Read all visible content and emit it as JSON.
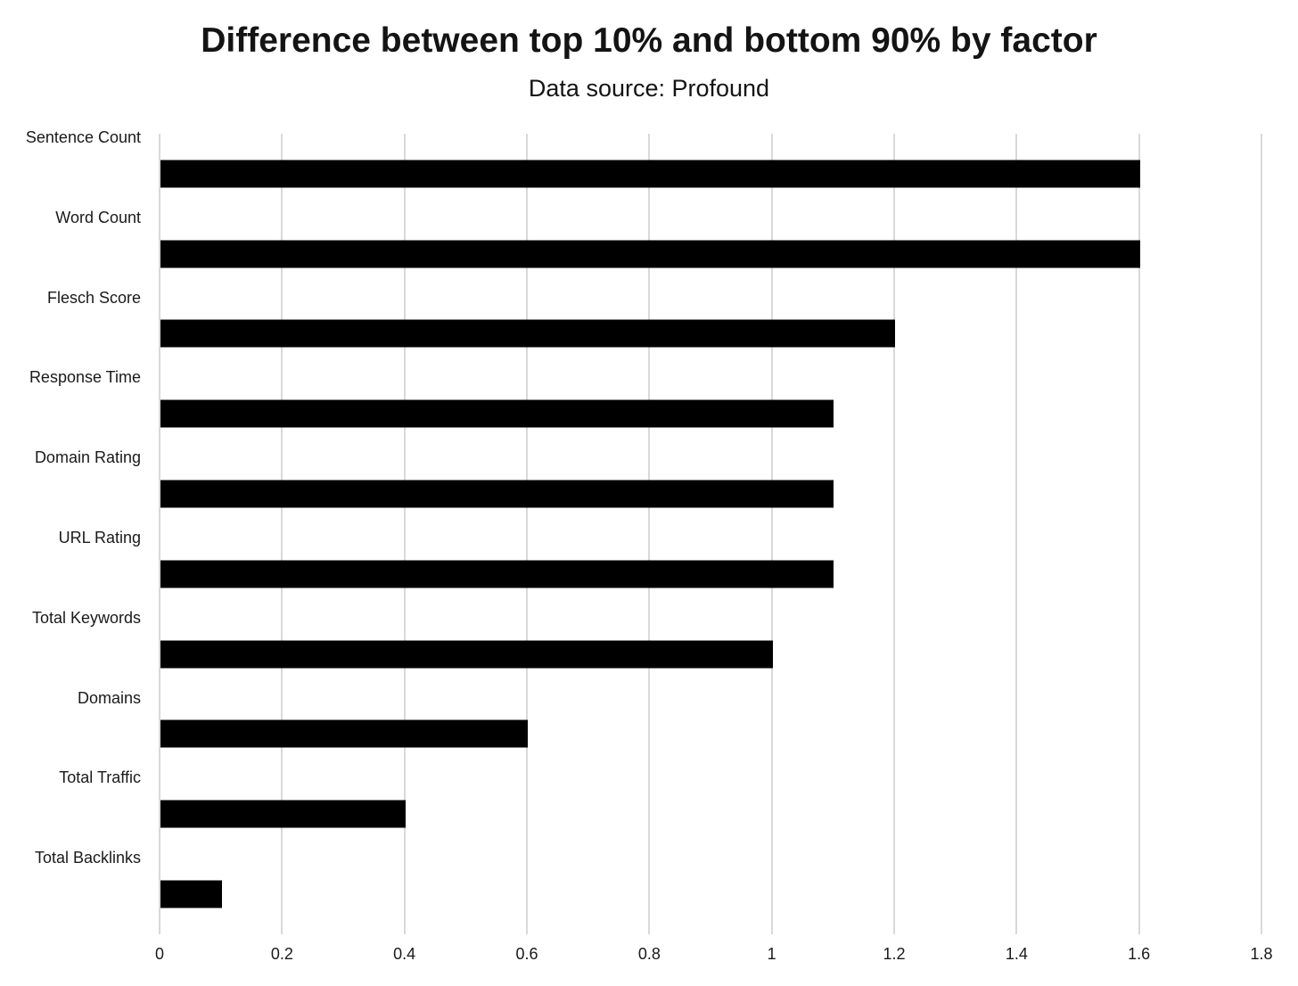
{
  "chart_data": {
    "type": "bar",
    "orientation": "horizontal",
    "title": "Difference between top 10% and bottom 90% by factor",
    "subtitle": "Data source: Profound",
    "categories": [
      "Sentence Count",
      "Word Count",
      "Flesch Score",
      "Response Time",
      "Domain Rating",
      "URL Rating",
      "Total Keywords",
      "Domains",
      "Total Traffic",
      "Total Backlinks"
    ],
    "values": [
      1.6,
      1.6,
      1.2,
      1.1,
      1.1,
      1.1,
      1.0,
      0.6,
      0.4,
      0.1
    ],
    "xlabel": "",
    "ylabel": "",
    "xlim": [
      0,
      1.8
    ],
    "xtick_values": [
      0,
      0.2,
      0.4,
      0.6,
      0.8,
      1,
      1.2,
      1.4,
      1.6,
      1.8
    ],
    "xtick_labels": [
      "0",
      "0.2",
      "0.4",
      "0.6",
      "0.8",
      "1",
      "1.2",
      "1.4",
      "1.6",
      "1.8"
    ],
    "grid": "vertical",
    "legend_position": "none",
    "colors": {
      "bar": "#000000",
      "gridline": "#d9d9d9",
      "text": "#1a1a1a",
      "background": "#ffffff"
    }
  }
}
